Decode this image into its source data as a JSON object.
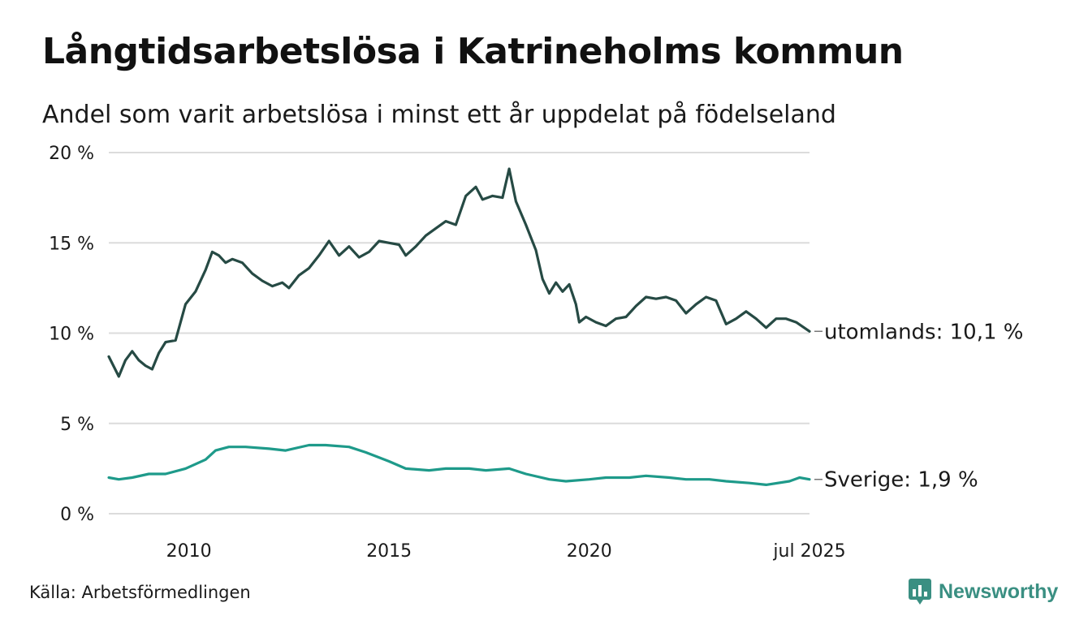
{
  "title": "Långtidsarbetslösa i Katrineholms kommun",
  "subtitle": "Andel som varit arbetslösa i minst ett år uppdelat på födelseland",
  "source": "Källa: Arbetsförmedlingen",
  "brand": {
    "name": "Newsworthy",
    "icon": "newsworthy-logo-icon",
    "color": "#3a8f82"
  },
  "chart_data": {
    "type": "line",
    "x_start": "2008-01",
    "x_end": "2025-07",
    "y_unit": " %",
    "ylim": [
      0,
      20
    ],
    "y_ticks": [
      0,
      5,
      10,
      15,
      20
    ],
    "y_tick_labels": [
      "0 %",
      "5 %",
      "10 %",
      "15 %",
      "20 %"
    ],
    "x_ticks": [
      {
        "x": "2010",
        "label": "2010"
      },
      {
        "x": "2015",
        "label": "2015"
      },
      {
        "x": "2020",
        "label": "2020"
      },
      {
        "x": "2025-07",
        "label": "jul 2025"
      }
    ],
    "grid": "horizontal",
    "series": [
      {
        "name": "utomlands",
        "color": "#264a44",
        "end_label": "utomlands: 10,1 %",
        "points": [
          [
            "2008-01",
            8.7
          ],
          [
            "2008-04",
            7.6
          ],
          [
            "2008-06",
            8.5
          ],
          [
            "2008-08",
            9.0
          ],
          [
            "2008-10",
            8.5
          ],
          [
            "2008-12",
            8.2
          ],
          [
            "2009-02",
            8.0
          ],
          [
            "2009-04",
            8.9
          ],
          [
            "2009-06",
            9.5
          ],
          [
            "2009-09",
            9.6
          ],
          [
            "2009-12",
            11.6
          ],
          [
            "2010-03",
            12.3
          ],
          [
            "2010-06",
            13.5
          ],
          [
            "2010-08",
            14.5
          ],
          [
            "2010-10",
            14.3
          ],
          [
            "2010-12",
            13.9
          ],
          [
            "2011-02",
            14.1
          ],
          [
            "2011-05",
            13.9
          ],
          [
            "2011-08",
            13.3
          ],
          [
            "2011-11",
            12.9
          ],
          [
            "2012-02",
            12.6
          ],
          [
            "2012-05",
            12.8
          ],
          [
            "2012-07",
            12.5
          ],
          [
            "2012-10",
            13.2
          ],
          [
            "2013-01",
            13.6
          ],
          [
            "2013-04",
            14.3
          ],
          [
            "2013-07",
            15.1
          ],
          [
            "2013-10",
            14.3
          ],
          [
            "2014-01",
            14.8
          ],
          [
            "2014-04",
            14.2
          ],
          [
            "2014-07",
            14.5
          ],
          [
            "2014-10",
            15.1
          ],
          [
            "2015-01",
            15.0
          ],
          [
            "2015-04",
            14.9
          ],
          [
            "2015-06",
            14.3
          ],
          [
            "2015-09",
            14.8
          ],
          [
            "2015-12",
            15.4
          ],
          [
            "2016-03",
            15.8
          ],
          [
            "2016-06",
            16.2
          ],
          [
            "2016-09",
            16.0
          ],
          [
            "2016-12",
            17.6
          ],
          [
            "2017-03",
            18.1
          ],
          [
            "2017-05",
            17.4
          ],
          [
            "2017-08",
            17.6
          ],
          [
            "2017-11",
            17.5
          ],
          [
            "2018-01",
            19.1
          ],
          [
            "2018-03",
            17.3
          ],
          [
            "2018-06",
            16.0
          ],
          [
            "2018-09",
            14.6
          ],
          [
            "2018-11",
            13.0
          ],
          [
            "2019-01",
            12.2
          ],
          [
            "2019-03",
            12.8
          ],
          [
            "2019-05",
            12.3
          ],
          [
            "2019-07",
            12.7
          ],
          [
            "2019-09",
            11.6
          ],
          [
            "2019-10",
            10.6
          ],
          [
            "2019-12",
            10.9
          ],
          [
            "2020-03",
            10.6
          ],
          [
            "2020-06",
            10.4
          ],
          [
            "2020-09",
            10.8
          ],
          [
            "2020-12",
            10.9
          ],
          [
            "2021-03",
            11.5
          ],
          [
            "2021-06",
            12.0
          ],
          [
            "2021-09",
            11.9
          ],
          [
            "2021-12",
            12.0
          ],
          [
            "2022-03",
            11.8
          ],
          [
            "2022-06",
            11.1
          ],
          [
            "2022-09",
            11.6
          ],
          [
            "2022-12",
            12.0
          ],
          [
            "2023-03",
            11.8
          ],
          [
            "2023-06",
            10.5
          ],
          [
            "2023-09",
            10.8
          ],
          [
            "2023-12",
            11.2
          ],
          [
            "2024-03",
            10.8
          ],
          [
            "2024-06",
            10.3
          ],
          [
            "2024-09",
            10.8
          ],
          [
            "2024-12",
            10.8
          ],
          [
            "2025-03",
            10.6
          ],
          [
            "2025-07",
            10.1
          ]
        ]
      },
      {
        "name": "Sverige",
        "color": "#1e9a8a",
        "end_label": "Sverige:  1,9 %",
        "points": [
          [
            "2008-01",
            2.0
          ],
          [
            "2008-04",
            1.9
          ],
          [
            "2008-08",
            2.0
          ],
          [
            "2009-01",
            2.2
          ],
          [
            "2009-06",
            2.2
          ],
          [
            "2009-12",
            2.5
          ],
          [
            "2010-06",
            3.0
          ],
          [
            "2010-09",
            3.5
          ],
          [
            "2011-01",
            3.7
          ],
          [
            "2011-06",
            3.7
          ],
          [
            "2012-01",
            3.6
          ],
          [
            "2012-06",
            3.5
          ],
          [
            "2013-01",
            3.8
          ],
          [
            "2013-06",
            3.8
          ],
          [
            "2014-01",
            3.7
          ],
          [
            "2014-06",
            3.4
          ],
          [
            "2015-01",
            2.9
          ],
          [
            "2015-06",
            2.5
          ],
          [
            "2016-01",
            2.4
          ],
          [
            "2016-06",
            2.5
          ],
          [
            "2017-01",
            2.5
          ],
          [
            "2017-06",
            2.4
          ],
          [
            "2018-01",
            2.5
          ],
          [
            "2018-06",
            2.2
          ],
          [
            "2019-01",
            1.9
          ],
          [
            "2019-06",
            1.8
          ],
          [
            "2020-01",
            1.9
          ],
          [
            "2020-06",
            2.0
          ],
          [
            "2021-01",
            2.0
          ],
          [
            "2021-06",
            2.1
          ],
          [
            "2022-01",
            2.0
          ],
          [
            "2022-06",
            1.9
          ],
          [
            "2023-01",
            1.9
          ],
          [
            "2023-06",
            1.8
          ],
          [
            "2024-01",
            1.7
          ],
          [
            "2024-06",
            1.6
          ],
          [
            "2025-01",
            1.8
          ],
          [
            "2025-04",
            2.0
          ],
          [
            "2025-07",
            1.9
          ]
        ]
      }
    ]
  }
}
